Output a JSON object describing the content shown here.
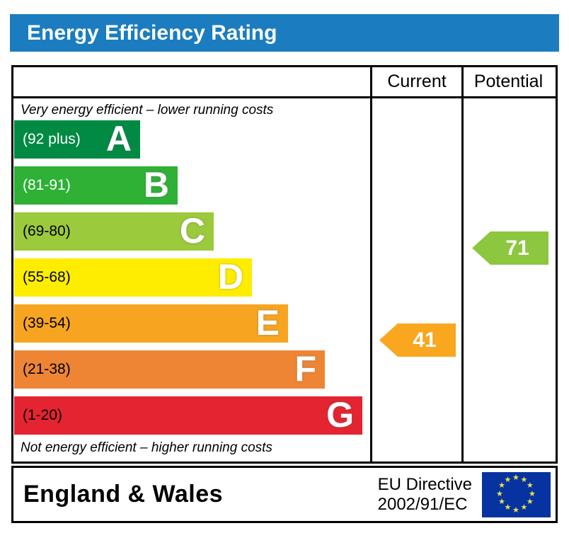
{
  "title": "Energy Efficiency Rating",
  "colors": {
    "title_bar": "#1b7dbf",
    "border": "#000000",
    "eu_flag_blue": "#0633a0",
    "eu_star_yellow": "#e8e44a"
  },
  "table": {
    "columns": [
      "Current",
      "Potential"
    ],
    "top_note": "Very energy efficient – lower running costs",
    "bottom_note": "Not energy efficient – higher running costs"
  },
  "chart_data": {
    "type": "bar",
    "title": "Energy Efficiency Rating",
    "bands": [
      {
        "letter": "A",
        "range_label": "(92 plus)",
        "min": 92,
        "max": 100,
        "color": "#008a43",
        "label_color": "#ffffff",
        "width_pct": 35.3
      },
      {
        "letter": "B",
        "range_label": "(81-91)",
        "min": 81,
        "max": 91,
        "color": "#2eb135",
        "label_color": "#ffffff",
        "width_pct": 45.8
      },
      {
        "letter": "C",
        "range_label": "(69-80)",
        "min": 69,
        "max": 80,
        "color": "#9bca3c",
        "label_color": "#000000",
        "width_pct": 56.0
      },
      {
        "letter": "D",
        "range_label": "(55-68)",
        "min": 55,
        "max": 68,
        "color": "#ffed00",
        "label_color": "#000000",
        "width_pct": 66.7
      },
      {
        "letter": "E",
        "range_label": "(39-54)",
        "min": 39,
        "max": 54,
        "color": "#f7a521",
        "label_color": "#000000",
        "width_pct": 76.8
      },
      {
        "letter": "F",
        "range_label": "(21-38)",
        "min": 21,
        "max": 38,
        "color": "#ee8534",
        "label_color": "#000000",
        "width_pct": 87.1
      },
      {
        "letter": "G",
        "range_label": "(1-20)",
        "min": 1,
        "max": 20,
        "color": "#e42430",
        "label_color": "#000000",
        "width_pct": 97.6
      }
    ],
    "current": {
      "value": 41,
      "band": "E",
      "color": "#f9a71f"
    },
    "potential": {
      "value": 71,
      "band": "C",
      "color": "#8dc63f"
    }
  },
  "footer": {
    "region": "England & Wales",
    "directive_line1": "EU Directive",
    "directive_line2": "2002/91/EC"
  }
}
